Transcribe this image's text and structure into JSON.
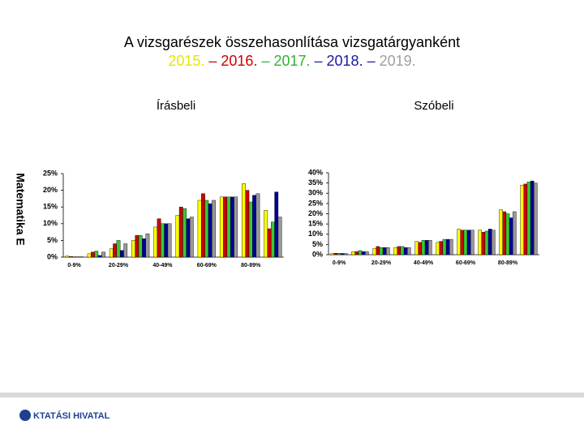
{
  "slide": {
    "title": "A vizsgarészek összehasonlítása vizsgatárgyanként",
    "years": [
      {
        "text": "2015.",
        "color": "#e6e600"
      },
      {
        "text": "– 2016.",
        "color": "#cc0000"
      },
      {
        "text": "– 2017.",
        "color": "#33b033"
      },
      {
        "text": "– 2018. –",
        "color": "#1a1aa0"
      },
      {
        "text": "2019.",
        "color": "#a0a0a0"
      }
    ],
    "row_label": "Matematika E",
    "footer": "KTATÁSI HIVATAL"
  },
  "chart_data": [
    {
      "type": "bar",
      "title": "Írásbeli",
      "categories": [
        "0-9%",
        null,
        "20-29%",
        null,
        "40-49%",
        null,
        "60-69%",
        null,
        "80-89%",
        null
      ],
      "series": [
        {
          "name": "2015",
          "color": "#ffff00",
          "values": [
            0.3,
            1,
            2.5,
            5,
            9,
            12.5,
            17,
            18,
            22,
            14
          ]
        },
        {
          "name": "2016",
          "color": "#cc0000",
          "values": [
            0.2,
            1.5,
            4,
            6.5,
            11.5,
            15,
            19,
            18,
            20,
            8.5
          ]
        },
        {
          "name": "2017",
          "color": "#33cc33",
          "values": [
            0.1,
            1.8,
            5,
            6.5,
            10,
            14.5,
            17,
            18,
            16.5,
            10.5
          ]
        },
        {
          "name": "2018",
          "color": "#000099",
          "values": [
            0.1,
            0.5,
            2,
            5.5,
            10,
            11.5,
            16,
            18,
            18.5,
            19.5
          ]
        },
        {
          "name": "2019",
          "color": "#999999",
          "values": [
            0.1,
            1.5,
            4,
            7,
            10,
            12,
            17,
            18,
            19,
            12
          ]
        }
      ],
      "ylim": [
        0,
        25
      ],
      "yticks": [
        {
          "value": 0,
          "label": "0%"
        },
        {
          "value": 5,
          "label": "5%"
        },
        {
          "value": 10,
          "label": "10%"
        },
        {
          "value": 15,
          "label": "15%"
        },
        {
          "value": 20,
          "label": "20%"
        },
        {
          "value": 25,
          "label": "25%"
        }
      ]
    },
    {
      "type": "bar",
      "title": "Szóbeli",
      "categories": [
        "0-9%",
        null,
        "20-29%",
        null,
        "40-49%",
        null,
        "60-69%",
        null,
        "80-89%",
        null
      ],
      "series": [
        {
          "name": "2015",
          "color": "#ffff00",
          "values": [
            0.5,
            1.5,
            3,
            3.5,
            6.5,
            6,
            12.5,
            12,
            22,
            34
          ]
        },
        {
          "name": "2016",
          "color": "#cc0000",
          "values": [
            0.7,
            1.5,
            4,
            4,
            6,
            6.5,
            12,
            11,
            21,
            34.5
          ]
        },
        {
          "name": "2017",
          "color": "#33cc33",
          "values": [
            0.7,
            2,
            3.5,
            4,
            7,
            7.5,
            12,
            11.5,
            20,
            35.5
          ]
        },
        {
          "name": "2018",
          "color": "#000099",
          "values": [
            0.6,
            1.5,
            3.5,
            3.5,
            7,
            7.5,
            12,
            12.5,
            18,
            36
          ]
        },
        {
          "name": "2019",
          "color": "#999999",
          "values": [
            0.6,
            1.5,
            3.5,
            3.5,
            7,
            7.5,
            12,
            12,
            21,
            35
          ]
        }
      ],
      "ylim": [
        0,
        40
      ],
      "yticks": [
        {
          "value": 0,
          "label": "0%"
        },
        {
          "value": 5,
          "label": "5%"
        },
        {
          "value": 10,
          "label": "10%"
        },
        {
          "value": 15,
          "label": "15%"
        },
        {
          "value": 20,
          "label": "20%"
        },
        {
          "value": 25,
          "label": "25%"
        },
        {
          "value": 30,
          "label": "30%"
        },
        {
          "value": 35,
          "label": "35%"
        },
        {
          "value": 40,
          "label": "40%"
        }
      ]
    }
  ]
}
